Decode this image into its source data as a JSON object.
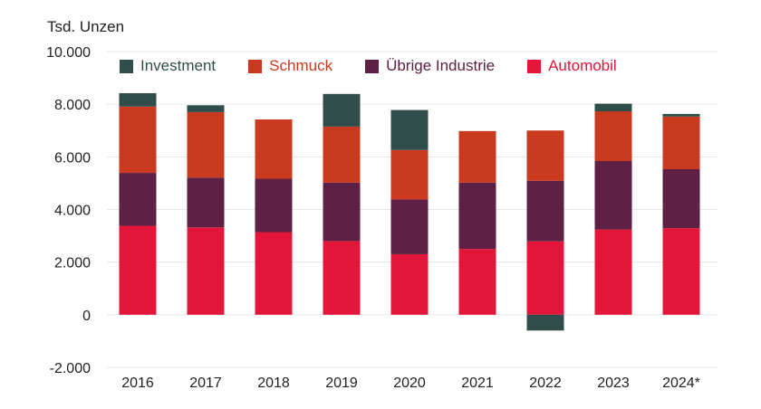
{
  "chart_data": {
    "type": "bar",
    "stacked": true,
    "ylabel": "Tsd. Unzen",
    "categories": [
      "2016",
      "2017",
      "2018",
      "2019",
      "2020",
      "2021",
      "2022",
      "2023",
      "2024*"
    ],
    "yticks": [
      "-2.000",
      "0",
      "2.000",
      "4.000",
      "6.000",
      "8.000",
      "10.000"
    ],
    "ylim": [
      -2000,
      10000
    ],
    "grid": true,
    "legend_position": "top",
    "series": [
      {
        "name": "Automobil",
        "color": "#e3163a",
        "values": [
          3380,
          3320,
          3140,
          2800,
          2300,
          2500,
          2790,
          3240,
          3290
        ]
      },
      {
        "name": "Übrige Industrie",
        "color": "#5e2045",
        "values": [
          2010,
          1890,
          2030,
          2220,
          2080,
          2520,
          2300,
          2600,
          2240
        ]
      },
      {
        "name": "Schmuck",
        "color": "#c93a1f",
        "values": [
          2520,
          2490,
          2250,
          2130,
          1880,
          1960,
          1910,
          1890,
          2000
        ]
      },
      {
        "name": "Investment",
        "color": "#2f4d4b",
        "values": [
          510,
          260,
          0,
          1240,
          1520,
          0,
          -600,
          290,
          100
        ]
      }
    ],
    "legend_order": [
      "Investment",
      "Schmuck",
      "Übrige Industrie",
      "Automobil"
    ]
  }
}
